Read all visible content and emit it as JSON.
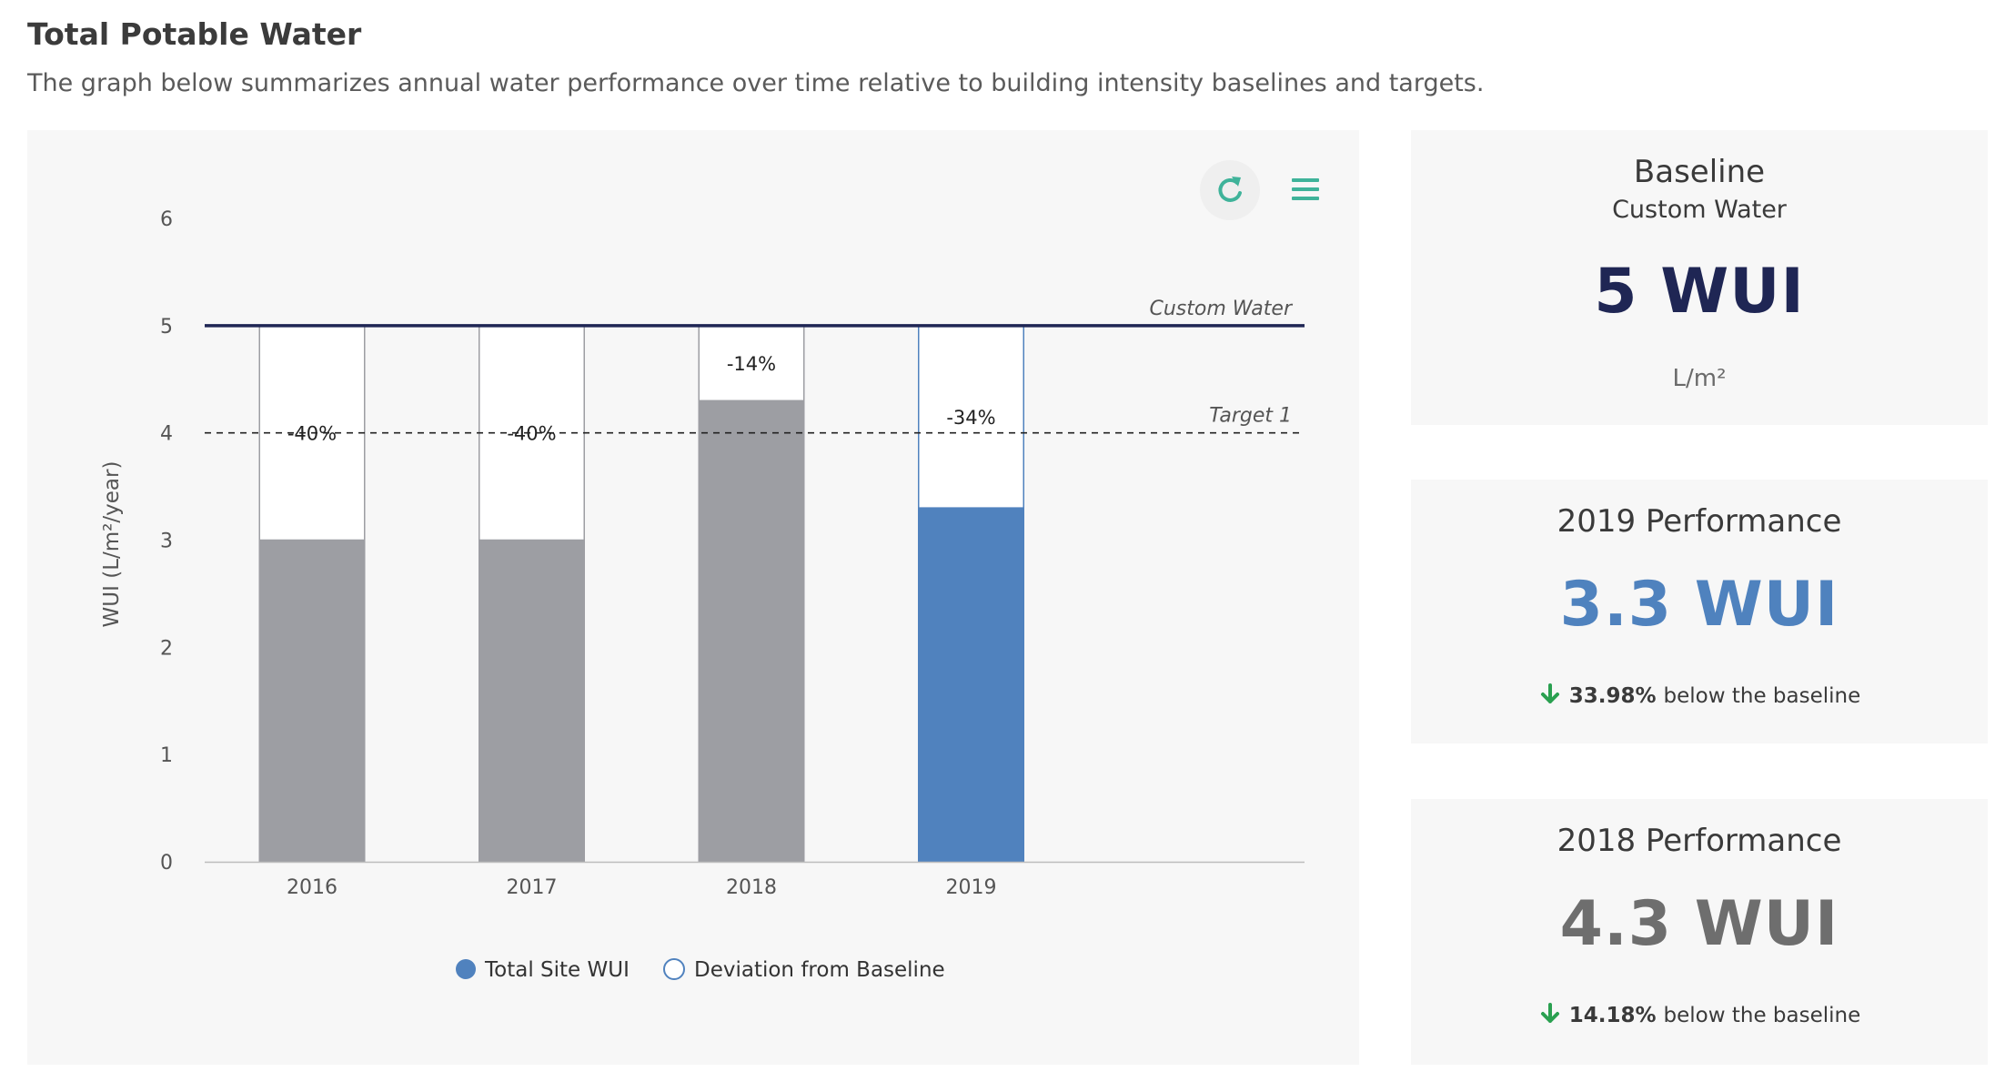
{
  "header": {
    "title": "Total Potable Water",
    "subtitle": "The graph below summarizes annual water performance over time relative to building intensity baselines and targets."
  },
  "colors": {
    "total_site_wui": "#5082be",
    "past_years": "#9d9ea3",
    "baseline_line": "#1f2654",
    "accent_teal": "#3fb39a",
    "down_arrow": "#2aa050"
  },
  "toolbar": {
    "refresh_icon": "refresh-icon",
    "menu_icon": "hamburger-menu-icon"
  },
  "chart_data": {
    "type": "bar",
    "categories": [
      "2016",
      "2017",
      "2018",
      "2019"
    ],
    "series": [
      {
        "name": "Total Site WUI",
        "values": [
          3.0,
          3.0,
          4.3,
          3.3
        ]
      },
      {
        "name": "Deviation from Baseline",
        "values": [
          2.0,
          2.0,
          0.7,
          1.7
        ]
      }
    ],
    "deviation_labels": [
      "-40%",
      "-40%",
      "-14%",
      "-34%"
    ],
    "highlight_category": "2019",
    "ylabel": "WUI (L/m²/year)",
    "ylim": [
      0,
      6
    ],
    "yticks": [
      0,
      1,
      2,
      3,
      4,
      5,
      6
    ],
    "reference_lines": [
      {
        "label": "Custom Water",
        "value": 5,
        "style": "solid"
      },
      {
        "label": "Target 1",
        "value": 4,
        "style": "dashed"
      }
    ],
    "legend_position": "bottom-center",
    "grid": false
  },
  "kpis": {
    "baseline": {
      "title": "Baseline",
      "subtitle": "Custom Water",
      "value": "5 WUI",
      "unit": "L/m²",
      "value_color": "#1f2654"
    },
    "perf_2019": {
      "title": "2019 Performance",
      "value": "3.3 WUI",
      "delta_pct": "33.98%",
      "delta_text": "below the baseline",
      "value_color": "#4f82be"
    },
    "perf_2018": {
      "title": "2018 Performance",
      "value": "4.3 WUI",
      "delta_pct": "14.18%",
      "delta_text": "below the baseline",
      "value_color": "#6e6e6e"
    }
  }
}
